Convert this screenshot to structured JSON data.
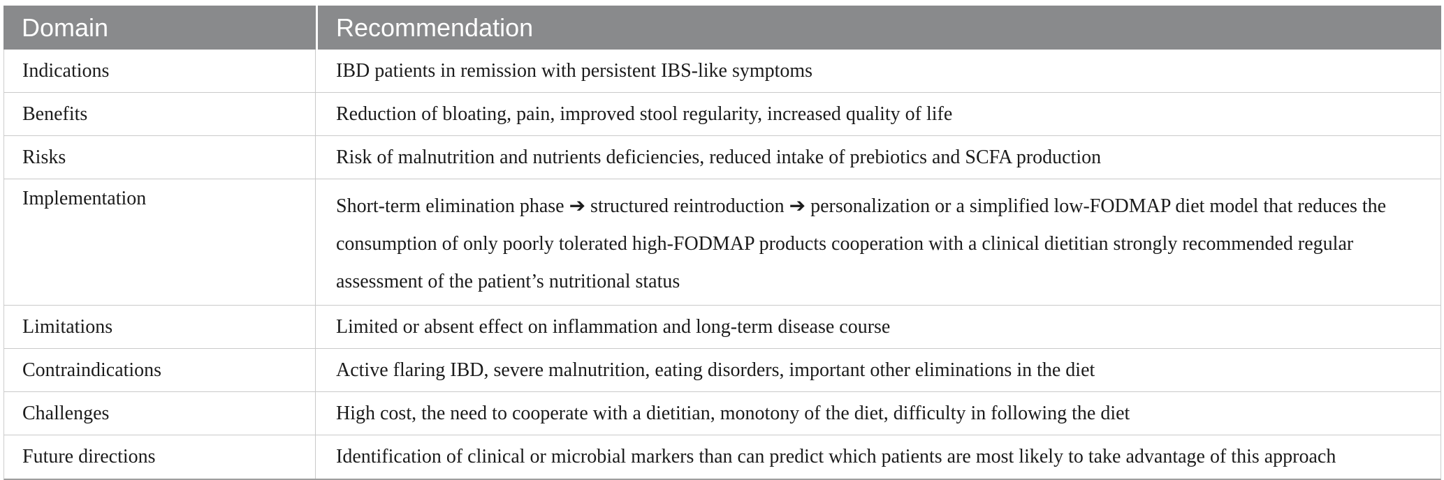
{
  "table": {
    "columns": {
      "domain_label": "Domain",
      "recommendation_label": "Recommendation"
    },
    "rows": [
      {
        "domain": "Indications",
        "recommendation": "IBD patients in remission with persistent IBS-like symptoms"
      },
      {
        "domain": "Benefits",
        "recommendation": "Reduction of bloating, pain, improved stool regularity, increased quality of life"
      },
      {
        "domain": "Risks",
        "recommendation": "Risk of malnutrition and nutrients deficiencies, reduced intake of prebiotics and SCFA production"
      },
      {
        "domain": "Implementation",
        "recommendation": "Short-term elimination phase ➔ structured reintroduction ➔ personalization or a simplified low-FODMAP diet model that reduces the consumption of only poorly tolerated high-FODMAP products cooperation with a clinical dietitian strongly recommended regular assessment of the patient’s nutritional status"
      },
      {
        "domain": "Limitations",
        "recommendation": "Limited or absent effect on inflammation and long-term disease course"
      },
      {
        "domain": "Contraindications",
        "recommendation": "Active flaring IBD, severe malnutrition, eating disorders, important other eliminations in the diet"
      },
      {
        "domain": "Challenges",
        "recommendation": "High cost, the need to cooperate with a dietitian, monotony of the diet, difficulty in following the diet"
      },
      {
        "domain": "Future directions",
        "recommendation": "Identification of clinical or microbial markers than can predict which patients are most likely to take advantage of this approach"
      }
    ],
    "colors": {
      "header_bg": "#898a8c",
      "header_text": "#ffffff",
      "body_text": "#1b1b1b",
      "row_border": "#c9c9c9",
      "bottom_border": "#9e9e9e"
    }
  }
}
